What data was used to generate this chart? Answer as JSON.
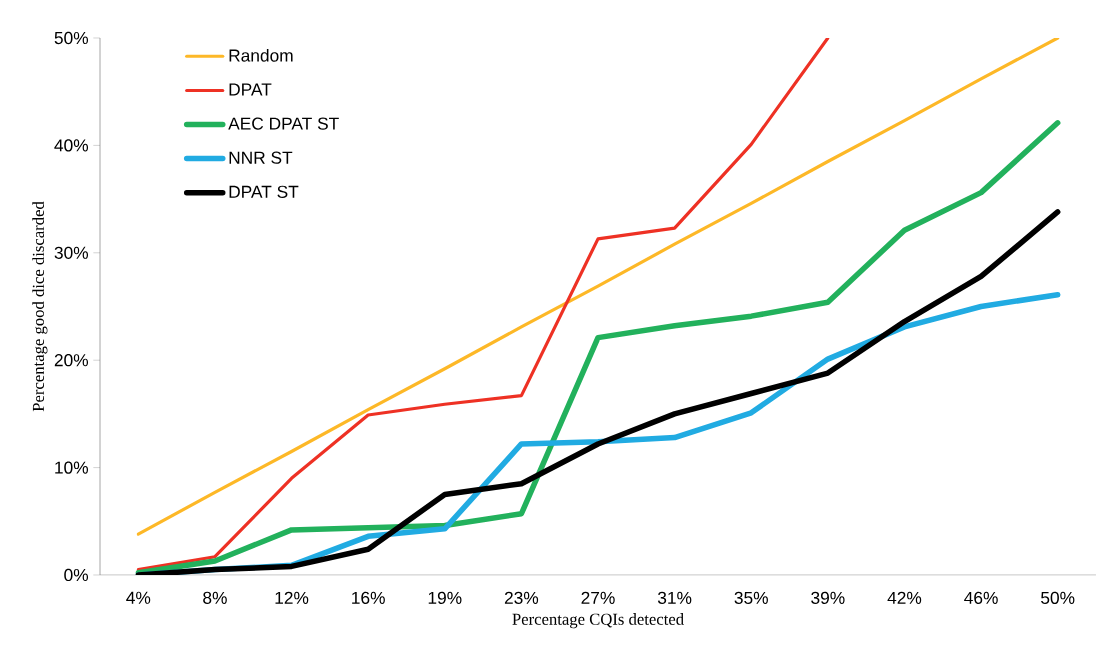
{
  "chart_data": {
    "type": "line",
    "xlabel": "Percentage CQIs detected",
    "ylabel": "Percentage good dice  discarded",
    "categories": [
      "4%",
      "8%",
      "12%",
      "16%",
      "19%",
      "23%",
      "27%",
      "31%",
      "35%",
      "39%",
      "42%",
      "46%",
      "50%"
    ],
    "series": [
      {
        "name": "Random",
        "color": "#fdb827",
        "values": [
          3.8,
          7.7,
          11.5,
          15.4,
          19.2,
          23.1,
          26.9,
          30.8,
          34.6,
          38.5,
          42.3,
          46.2,
          50
        ]
      },
      {
        "name": "DPAT",
        "color": "#ee3124",
        "values": [
          0.5,
          1.7,
          9.0,
          14.9,
          15.9,
          16.7,
          31.3,
          32.3,
          40.1,
          50.0,
          null,
          null,
          null
        ]
      },
      {
        "name": "AEC DPAT ST",
        "color": "#22b15c",
        "values": [
          0.2,
          1.3,
          4.2,
          4.4,
          4.6,
          5.7,
          22.1,
          23.2,
          24.1,
          25.4,
          32.1,
          35.6,
          42.1
        ]
      },
      {
        "name": "NNR ST",
        "color": "#21abe2",
        "values": [
          0,
          0.5,
          0.9,
          3.6,
          4.3,
          12.2,
          12.4,
          12.8,
          15.1,
          20.1,
          23.1,
          25.0,
          26.1
        ]
      },
      {
        "name": "DPAT ST",
        "color": "#000000",
        "values": [
          0,
          0.5,
          0.8,
          2.4,
          7.5,
          8.5,
          12.2,
          15.0,
          16.9,
          18.8,
          23.6,
          27.8,
          33.8
        ]
      }
    ],
    "ylim": [
      0,
      50
    ],
    "yticks": [
      {
        "value": 0,
        "label": "0%"
      },
      {
        "value": 10,
        "label": "10%"
      },
      {
        "value": 20,
        "label": "20%"
      },
      {
        "value": 30,
        "label": "30%"
      },
      {
        "value": 40,
        "label": "40%"
      },
      {
        "value": 50,
        "label": "50%"
      }
    ],
    "grid": false,
    "legend": "top left",
    "marker": "none",
    "line_style": "solid"
  }
}
